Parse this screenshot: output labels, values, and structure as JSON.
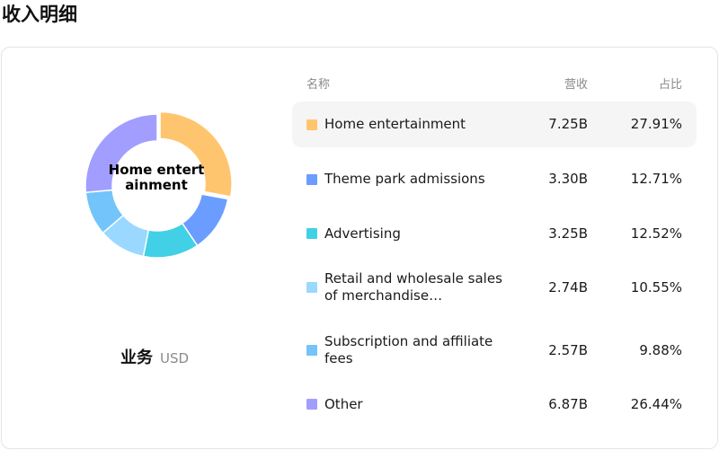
{
  "page_title": "收入明细",
  "dimension": {
    "title": "业务",
    "unit": "USD"
  },
  "table": {
    "col_name": "名称",
    "col_revenue": "营收",
    "col_share": "占比"
  },
  "selected_center_label": "Home entertainment",
  "chart_data": {
    "type": "pie",
    "categories": [
      "Home entertainment",
      "Theme park admissions",
      "Advertising",
      "Retail and wholesale sales of merchandise…",
      "Subscription and affiliate fees",
      "Other"
    ],
    "revenue_labels": [
      "7.25B",
      "3.30B",
      "3.25B",
      "2.74B",
      "2.57B",
      "6.87B"
    ],
    "values": [
      7.25,
      3.3,
      3.25,
      2.74,
      2.57,
      6.87
    ],
    "shares": [
      "27.91%",
      "12.71%",
      "12.52%",
      "10.55%",
      "9.88%",
      "26.44%"
    ],
    "share_values": [
      27.91,
      12.71,
      12.52,
      10.55,
      9.88,
      26.44
    ],
    "colors": [
      "#ffc56e",
      "#6a9dff",
      "#42d0e6",
      "#9ad8ff",
      "#72c4fa",
      "#a19eff"
    ],
    "highlighted": 0
  }
}
